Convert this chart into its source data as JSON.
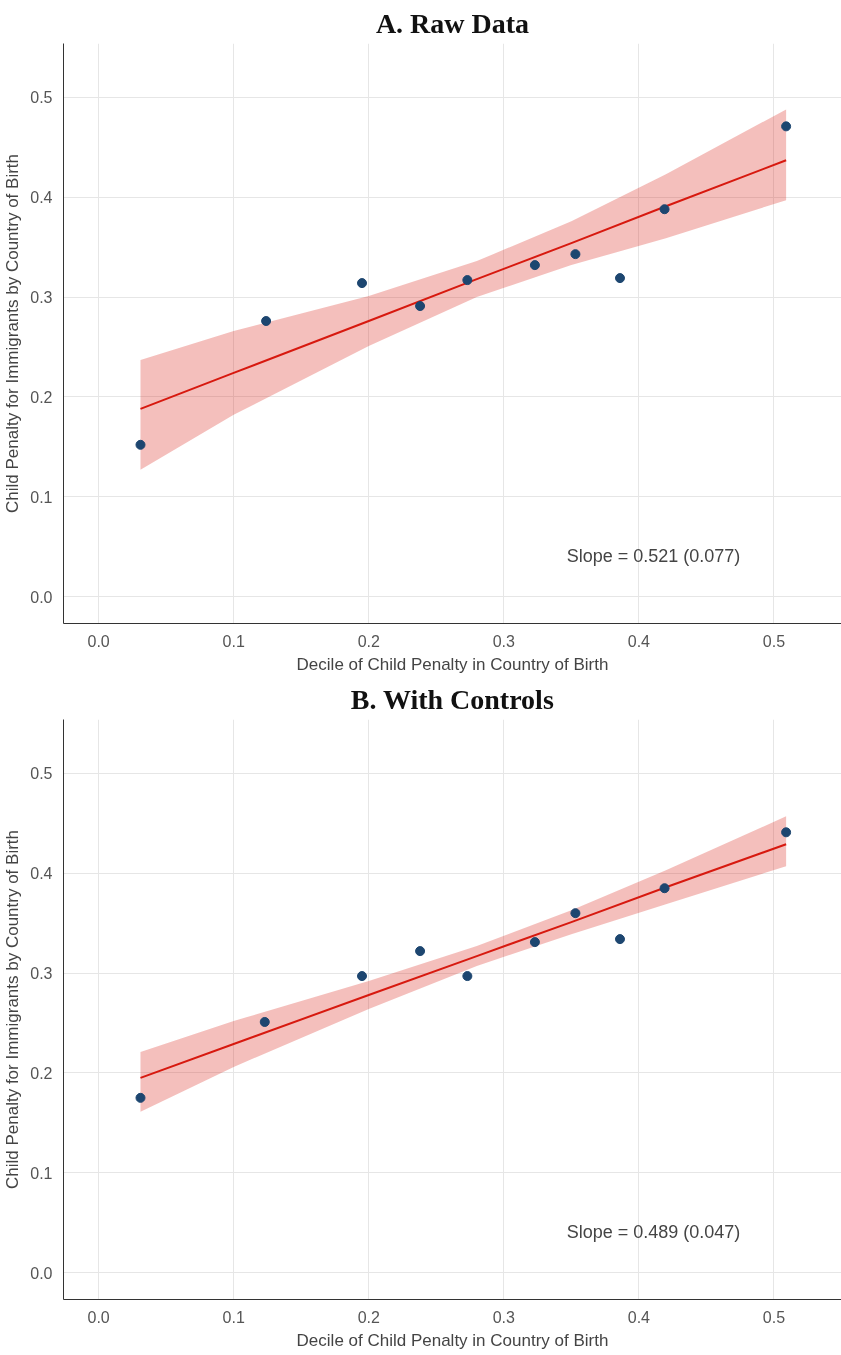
{
  "chart_data": [
    {
      "type": "scatter",
      "title": "A. Raw Data",
      "xlabel": "Decile of Child Penalty in Country of Birth",
      "ylabel": "Child Penalty for Immigrants by Country of Birth",
      "xlim": [
        -0.026,
        0.55
      ],
      "ylim": [
        -0.027,
        0.554
      ],
      "xticks": [
        {
          "value": 0,
          "label": "0.0"
        },
        0.1,
        0.2,
        0.3,
        0.4,
        0.5
      ],
      "yticks": [
        {
          "value": 0,
          "label": "0.0"
        },
        0.1,
        0.2,
        0.3,
        0.4,
        0.5
      ],
      "grid": true,
      "marker": "circle",
      "annotations": [
        "Slope = 0.521 (0.077)"
      ],
      "series": [
        {
          "color": "#1d4670",
          "x": [
            0.031,
            0.124,
            0.195,
            0.238,
            0.273,
            0.323,
            0.353,
            0.386,
            0.419,
            0.509
          ],
          "values": [
            0.152,
            0.276,
            0.314,
            0.291,
            0.317,
            0.332,
            0.343,
            0.319,
            0.388,
            0.471
          ]
        },
        {
          "type": "line",
          "marker": "none",
          "color": "#d7190f",
          "line_style": "solid",
          "x": [
            0.031,
            0.1,
            0.2,
            0.28,
            0.35,
            0.42,
            0.509
          ],
          "values": [
            0.188,
            0.224,
            0.276,
            0.318,
            0.354,
            0.391,
            0.437
          ],
          "lower": [
            0.127,
            0.182,
            0.251,
            0.3,
            0.332,
            0.359,
            0.397
          ],
          "upper": [
            0.237,
            0.266,
            0.301,
            0.336,
            0.376,
            0.423,
            0.488
          ]
        }
      ]
    },
    {
      "type": "scatter",
      "title": "B. With Controls",
      "xlabel": "Decile of Child Penalty in Country of Birth",
      "ylabel": "Child Penalty for Immigrants by Country of Birth",
      "xlim": [
        -0.026,
        0.55
      ],
      "ylim": [
        -0.027,
        0.554
      ],
      "xticks": [
        {
          "value": 0,
          "label": "0.0"
        },
        0.1,
        0.2,
        0.3,
        0.4,
        0.5
      ],
      "yticks": [
        {
          "value": 0,
          "label": "0.0"
        },
        0.1,
        0.2,
        0.3,
        0.4,
        0.5
      ],
      "grid": true,
      "marker": "circle",
      "annotations": [
        "Slope = 0.489 (0.047)"
      ],
      "series": [
        {
          "color": "#1d4670",
          "x": [
            0.031,
            0.123,
            0.195,
            0.238,
            0.273,
            0.323,
            0.353,
            0.386,
            0.419,
            0.509
          ],
          "values": [
            0.175,
            0.251,
            0.297,
            0.322,
            0.297,
            0.331,
            0.36,
            0.334,
            0.385,
            0.441
          ]
        },
        {
          "type": "line",
          "marker": "none",
          "color": "#d7190f",
          "line_style": "solid",
          "x": [
            0.031,
            0.1,
            0.2,
            0.28,
            0.35,
            0.42,
            0.509
          ],
          "values": [
            0.195,
            0.229,
            0.278,
            0.317,
            0.351,
            0.386,
            0.429
          ],
          "lower": [
            0.161,
            0.206,
            0.264,
            0.307,
            0.339,
            0.369,
            0.407
          ],
          "upper": [
            0.221,
            0.252,
            0.292,
            0.327,
            0.363,
            0.403,
            0.457
          ]
        }
      ]
    }
  ]
}
